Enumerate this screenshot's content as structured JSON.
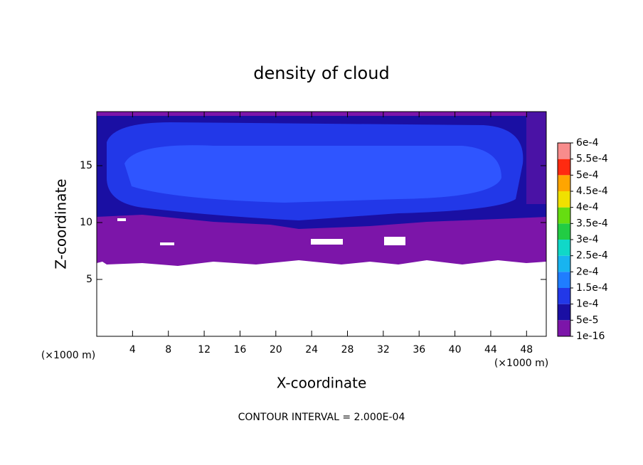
{
  "chart_data": {
    "type": "contour",
    "title": "density of cloud",
    "x_label": "X-coordinate",
    "y_label": "Z-coordinate",
    "x_unit": "(×1000 m)",
    "y_unit": "(×1000 m)",
    "xlim": [
      0,
      50.2
    ],
    "xticks": [
      4,
      8,
      12,
      16,
      20,
      24,
      28,
      32,
      36,
      40,
      44,
      48
    ],
    "ylim": [
      0,
      19.75
    ],
    "yticks": [
      5,
      10,
      15
    ],
    "levels": [
      {
        "value": 1e-16,
        "label": "1e-16"
      },
      {
        "value": 5e-05,
        "label": "5e-5"
      },
      {
        "value": 0.0001,
        "label": "1e-4"
      },
      {
        "value": 0.00015,
        "label": "1.5e-4"
      },
      {
        "value": 0.0002,
        "label": "2e-4"
      },
      {
        "value": 0.00025,
        "label": "2.5e-4"
      },
      {
        "value": 0.0003,
        "label": "3e-4"
      },
      {
        "value": 0.00035,
        "label": "3.5e-4"
      },
      {
        "value": 0.0004,
        "label": "4e-4"
      },
      {
        "value": 0.00045,
        "label": "4.5e-4"
      },
      {
        "value": 0.0005,
        "label": "5e-4"
      },
      {
        "value": 0.00055,
        "label": "5.5e-4"
      },
      {
        "value": 0.0006,
        "label": "6e-4"
      }
    ],
    "colors": [
      "#7c15a9",
      "#1a0fa3",
      "#2238e8",
      "#1f7dff",
      "#18b4f0",
      "#10d8c8",
      "#22cc44",
      "#66dd11",
      "#f0e000",
      "#ffa500",
      "#ff2a10",
      "#f88c8c"
    ],
    "annotation": "CONTOUR INTERVAL = 2.000E-04"
  }
}
